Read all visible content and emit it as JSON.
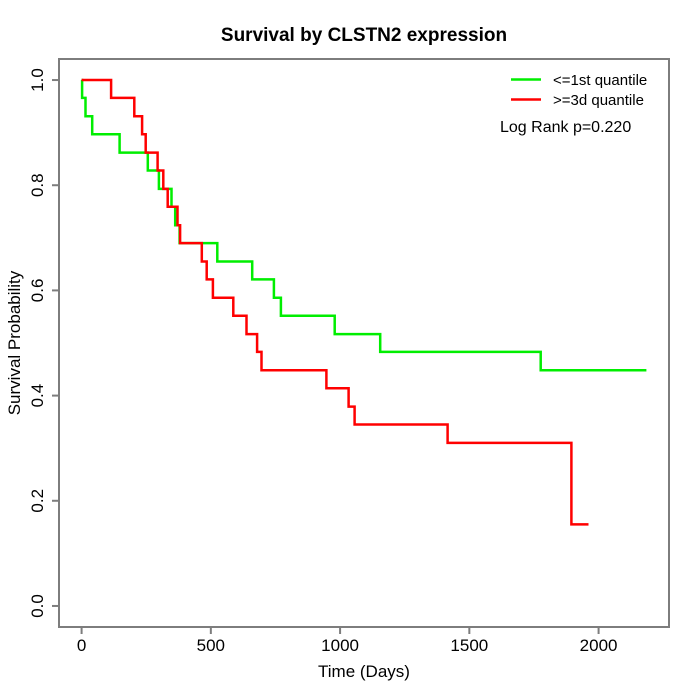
{
  "title": "Survival by CLSTN2 expression",
  "chart_data": {
    "type": "line",
    "subtype": "kaplan-meier-step",
    "title": "Survival by CLSTN2 expression",
    "xlabel": "Time (Days)",
    "ylabel": "Survival Probability",
    "xlim": [
      0,
      2185
    ],
    "ylim": [
      0,
      1
    ],
    "axis_padding_fraction": 0.04,
    "x_ticks": [
      0,
      500,
      1000,
      1500,
      2000
    ],
    "x_tick_labels": [
      "0",
      "500",
      "1000",
      "1500",
      "2000"
    ],
    "y_ticks": [
      0.0,
      0.2,
      0.4,
      0.6,
      0.8,
      1.0
    ],
    "y_tick_labels": [
      "0.0",
      "0.2",
      "0.4",
      "0.6",
      "0.8",
      "1.0"
    ],
    "grid": false,
    "legend_position": "top-right",
    "annotation": "Log Rank p=0.220",
    "series": [
      {
        "name": "<=1st quantile",
        "color": "#00ee00",
        "times": [
          0,
          2,
          15,
          41,
          147,
          256,
          299,
          348,
          362,
          379,
          525,
          660,
          744,
          771,
          979,
          1155,
          1776
        ],
        "surv": [
          1.0,
          0.966,
          0.931,
          0.897,
          0.862,
          0.828,
          0.793,
          0.759,
          0.724,
          0.69,
          0.655,
          0.621,
          0.586,
          0.552,
          0.517,
          0.483,
          0.448
        ],
        "end_time": 2185
      },
      {
        "name": ">=3d quantile",
        "color": "#ff0000",
        "times": [
          0,
          114,
          204,
          234,
          248,
          294,
          316,
          333,
          371,
          381,
          465,
          484,
          508,
          587,
          638,
          679,
          696,
          947,
          1033,
          1056,
          1416,
          1895
        ],
        "surv": [
          1.0,
          0.966,
          0.931,
          0.897,
          0.862,
          0.828,
          0.793,
          0.759,
          0.724,
          0.69,
          0.655,
          0.621,
          0.586,
          0.552,
          0.517,
          0.483,
          0.448,
          0.414,
          0.379,
          0.345,
          0.31,
          0.155
        ],
        "end_time": 1961
      }
    ]
  },
  "legend": {
    "items": [
      {
        "label": "<=1st quantile",
        "color": "#00ee00"
      },
      {
        "label": ">=3d quantile",
        "color": "#ff0000"
      }
    ],
    "note": "Log Rank p=0.220"
  },
  "colors": {
    "axis": "#7d7d7d",
    "text": "#000000",
    "background": "#ffffff"
  }
}
